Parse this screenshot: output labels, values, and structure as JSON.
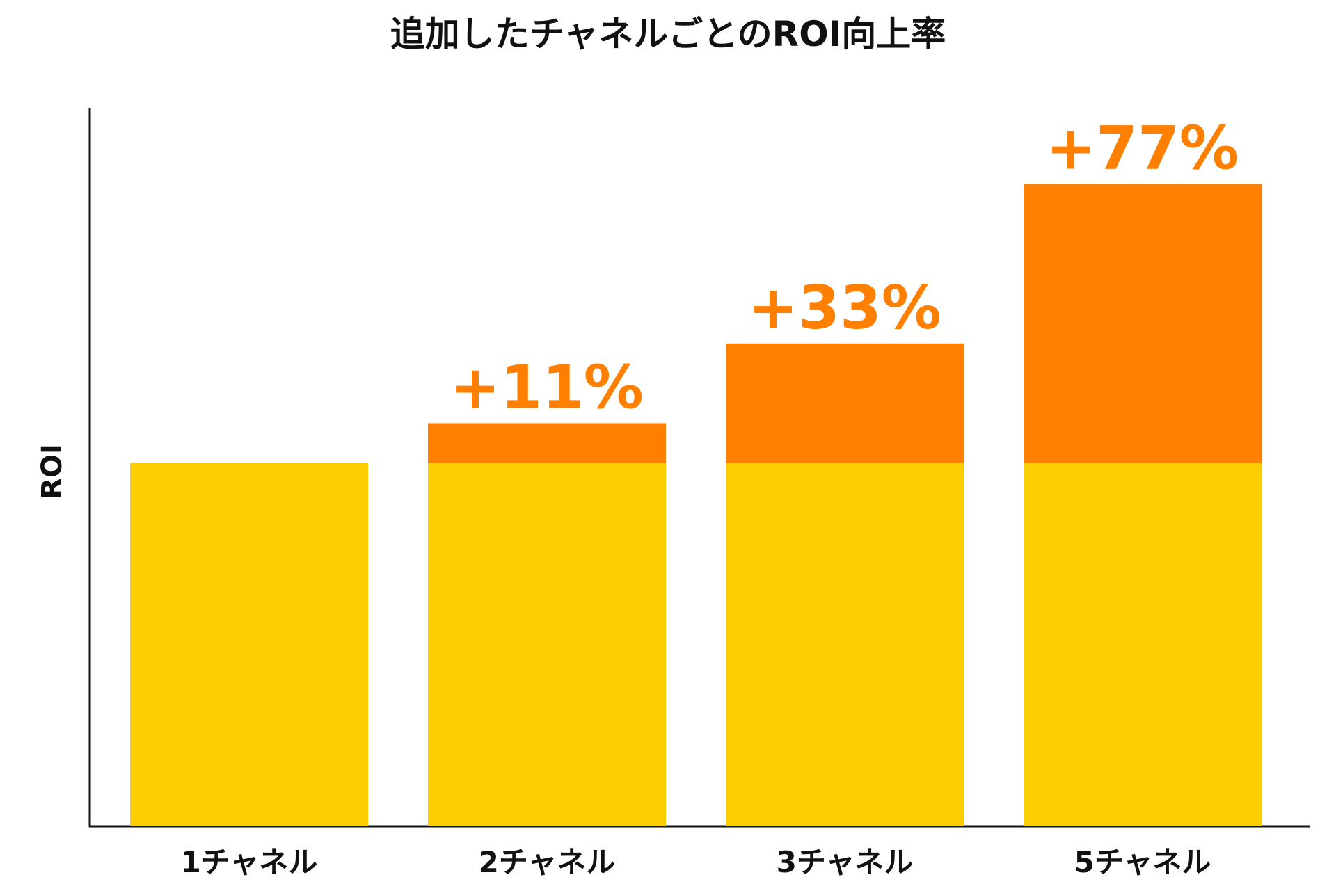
{
  "chart_data": {
    "type": "stacked_bar",
    "title": "追加したチャネルごとのROI向上率",
    "y_label": "ROI",
    "categories": [
      "1チャネル",
      "2チャネル",
      "3チャネル",
      "5チャネル"
    ],
    "series": [
      {
        "color": "#FCCD00",
        "values": [
          100,
          100,
          100,
          100
        ]
      },
      {
        "color": "#FF7F00",
        "values": [
          null,
          11,
          33,
          77
        ],
        "value_labels": [
          null,
          "+11%",
          "+33%",
          "+77%"
        ]
      }
    ],
    "ylim": [
      0,
      198
    ],
    "grid": false
  }
}
